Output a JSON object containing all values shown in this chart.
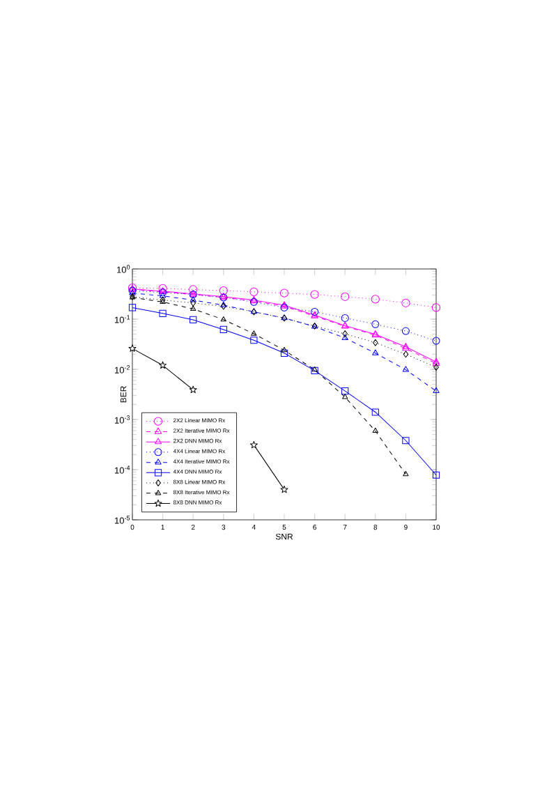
{
  "chart_data": {
    "type": "line",
    "xlabel": "SNR",
    "ylabel": "BER",
    "log": "y",
    "xlim": [
      0,
      10
    ],
    "xticks": [
      0,
      1,
      2,
      3,
      4,
      5,
      6,
      7,
      8,
      9,
      10
    ],
    "ylim": [
      1e-05,
      1
    ],
    "yticks": [
      {
        "value": 1e-05,
        "label": "10$^{-5}$"
      },
      {
        "value": 0.0001,
        "label": "10$^{-4}$"
      },
      {
        "value": 0.001,
        "label": "10$^{-3}$"
      },
      {
        "value": 0.01,
        "label": "10$^{-2}$"
      },
      {
        "value": 0.1,
        "label": "10$^{-1}$"
      },
      {
        "value": 1,
        "label": "10$^{0}$"
      }
    ],
    "x": [
      0,
      1,
      2,
      3,
      4,
      5,
      6,
      7,
      8,
      9,
      10
    ],
    "legend": "bottom left",
    "grid": false,
    "series": [
      {
        "name": "2X2 Linear MIMO Rx",
        "color": "#ff00ff",
        "marker": "circle",
        "line_style": "dotted",
        "values": [
          0.42,
          0.41,
          0.39,
          0.37,
          0.35,
          0.33,
          0.31,
          0.28,
          0.25,
          0.21,
          0.17
        ]
      },
      {
        "name": "2X2 Iterative MIMO Rx",
        "color": "#ff00ff",
        "marker": "triangle",
        "line_style": "dashed",
        "values": [
          0.39,
          0.35,
          0.31,
          0.27,
          0.23,
          0.18,
          0.115,
          0.072,
          0.048,
          0.026,
          0.013
        ]
      },
      {
        "name": "2X2 DNN MIMO Rx",
        "color": "#ff00ff",
        "marker": "triangle",
        "line_style": "solid",
        "values": [
          0.4,
          0.36,
          0.32,
          0.28,
          0.24,
          0.19,
          0.12,
          0.074,
          0.05,
          0.028,
          0.014
        ]
      },
      {
        "name": "4X4 Linear MIMO Rx",
        "color": "#0000ff",
        "marker": "circle",
        "line_style": "dotted",
        "values": [
          0.37,
          0.34,
          0.31,
          0.27,
          0.22,
          0.17,
          0.14,
          0.105,
          0.079,
          0.058,
          0.037
        ]
      },
      {
        "name": "4X4 Iterative MIMO Rx",
        "color": "#0000ff",
        "marker": "triangle",
        "line_style": "dashed",
        "values": [
          0.33,
          0.29,
          0.24,
          0.19,
          0.14,
          0.105,
          0.071,
          0.042,
          0.021,
          0.0098,
          0.0037
        ]
      },
      {
        "name": "4X4 DNN MIMO Rx",
        "color": "#0000ff",
        "marker": "square",
        "line_style": "solid",
        "values": [
          0.17,
          0.13,
          0.097,
          0.062,
          0.038,
          0.021,
          0.0094,
          0.0037,
          0.0014,
          0.00038,
          7.8e-05
        ]
      },
      {
        "name": "8X8 Linear MIMO Rx",
        "color": "#000000",
        "marker": "diamond",
        "line_style": "dotted",
        "values": [
          0.28,
          0.24,
          0.21,
          0.18,
          0.14,
          0.105,
          0.073,
          0.051,
          0.034,
          0.02,
          0.011
        ]
      },
      {
        "name": "8X8 Iterative MIMO Rx",
        "color": "#000000",
        "marker": "triangle",
        "line_style": "dashed",
        "values": [
          0.27,
          0.22,
          0.16,
          0.098,
          0.051,
          0.024,
          0.0098,
          0.0028,
          0.00059,
          8.1e-05,
          null
        ]
      },
      {
        "name": "8X8 DNN MIMO Rx",
        "color": "#000000",
        "marker": "star",
        "line_style": "solid",
        "values": [
          0.026,
          0.012,
          0.0039,
          null,
          0.00031,
          4e-05,
          null,
          null,
          null,
          null,
          null
        ]
      }
    ]
  }
}
